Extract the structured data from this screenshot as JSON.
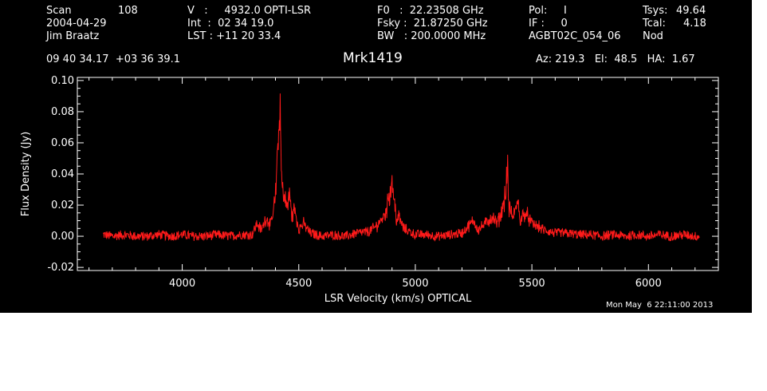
{
  "header": {
    "col1": {
      "scan_label": "Scan",
      "scan_value": "108",
      "date": "2004-04-29",
      "observer": "Jim Braatz"
    },
    "col2": {
      "velocity": "V   :     4932.0 OPTI-LSR",
      "integration": "Int  :  02 34 19.0",
      "lst": "LST : +11 20 33.4"
    },
    "col3": {
      "f0": "F0   :  22.23508 GHz",
      "fsky": "Fsky :  21.87250 GHz",
      "bw": "BW   : 200.0000 MHz"
    },
    "col4": {
      "pol": "Pol:     I",
      "if": "IF :     0",
      "project": "AGBT02C_054_06"
    },
    "col5": {
      "tsys_label": "Tsys:",
      "tsys_value": "49.64",
      "tcal_label": "Tcal:",
      "tcal_value": "4.18",
      "mode": "Nod"
    },
    "coords": "09 40 34.17  +03 36 39.1",
    "pointing": "Az: 219.3   El:  48.5   HA:  1.67"
  },
  "title": "Mrk1419",
  "timestamp": "Mon May  6 22:11:00 2013",
  "colors": {
    "background": "#000000",
    "axes": "#ffffff",
    "trace": "#ff1a1a",
    "page": "#ffffff"
  },
  "chart_data": {
    "type": "line",
    "xlabel": "LSR Velocity (km/s) OPTICAL",
    "ylabel": "Flux Density (Jy)",
    "xlim": [
      3550,
      6300
    ],
    "ylim": [
      -0.022,
      0.102
    ],
    "xticks": [
      4000,
      4500,
      5000,
      5500,
      6000
    ],
    "yticks": [
      -0.02,
      0.0,
      0.02,
      0.04,
      0.06,
      0.08,
      0.1
    ],
    "ytick_labels": [
      "-0.02",
      "0.00",
      "0.02",
      "0.04",
      "0.06",
      "0.08",
      "0.10"
    ],
    "grid": false,
    "series": [
      {
        "x": [
          3660,
          3700,
          3750,
          3800,
          3850,
          3900,
          3950,
          4000,
          4050,
          4100,
          4150,
          4200,
          4250,
          4300,
          4320,
          4340,
          4360,
          4380,
          4400,
          4410,
          4420,
          4425,
          4430,
          4440,
          4450,
          4460,
          4470,
          4480,
          4500,
          4520,
          4550,
          4600,
          4650,
          4700,
          4750,
          4800,
          4830,
          4850,
          4870,
          4880,
          4890,
          4900,
          4910,
          4920,
          4930,
          4950,
          5000,
          5050,
          5100,
          5150,
          5200,
          5250,
          5270,
          5300,
          5330,
          5350,
          5370,
          5390,
          5395,
          5400,
          5420,
          5440,
          5450,
          5470,
          5500,
          5530,
          5550,
          5600,
          5650,
          5700,
          5750,
          5800,
          5850,
          5900,
          5950,
          6000,
          6050,
          6100,
          6150,
          6200,
          6220
        ],
        "y": [
          0.001,
          0.0,
          0.001,
          0.0,
          0.0,
          0.001,
          0.0,
          0.001,
          0.0,
          0.0,
          0.001,
          0.0,
          0.001,
          0.001,
          0.008,
          0.004,
          0.012,
          0.007,
          0.025,
          0.055,
          0.084,
          0.04,
          0.03,
          0.024,
          0.018,
          0.028,
          0.012,
          0.018,
          0.005,
          0.008,
          0.002,
          0.0,
          0.001,
          0.0,
          0.002,
          0.003,
          0.006,
          0.01,
          0.014,
          0.02,
          0.028,
          0.035,
          0.024,
          0.01,
          0.012,
          0.005,
          0.001,
          0.001,
          0.0,
          0.001,
          0.002,
          0.01,
          0.004,
          0.008,
          0.012,
          0.008,
          0.015,
          0.03,
          0.052,
          0.018,
          0.012,
          0.022,
          0.01,
          0.016,
          0.008,
          0.006,
          0.004,
          0.002,
          0.002,
          0.001,
          0.001,
          0.0,
          0.001,
          0.0,
          0.001,
          0.0,
          0.001,
          0.0,
          0.001,
          0.0,
          0.0
        ]
      }
    ]
  }
}
